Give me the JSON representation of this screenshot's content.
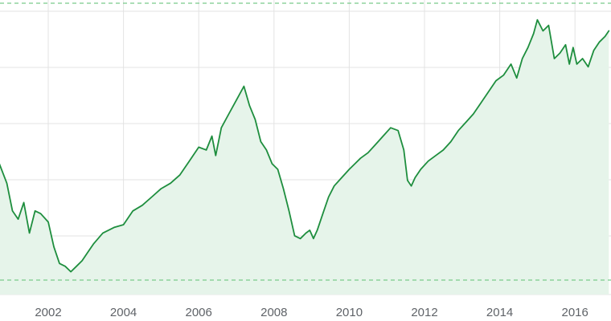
{
  "chart_data": {
    "type": "area",
    "x_ticks": [
      "2002",
      "2004",
      "2006",
      "2008",
      "2010",
      "2012",
      "2014",
      "2016"
    ],
    "reference_lines": {
      "high": 1.0,
      "low": 0.0
    },
    "ylim": [
      0,
      1
    ],
    "grid": true,
    "colors": {
      "line": "#1e8e3e",
      "fill": "#e6f4ea",
      "dashed": "#79c98b",
      "grid": "#e3e3e3",
      "tick_text": "#5f6368"
    },
    "series": [
      {
        "x": [
          2000.7,
          2000.9,
          2001.05,
          2001.2,
          2001.35,
          2001.5,
          2001.65,
          2001.8,
          2002.0,
          2002.15,
          2002.3,
          2002.45,
          2002.6,
          2002.75,
          2002.9,
          2003.05,
          2003.2,
          2003.45,
          2003.75,
          2004.0,
          2004.25,
          2004.5,
          2004.75,
          2005.0,
          2005.25,
          2005.5,
          2005.75,
          2006.0,
          2006.2,
          2006.35,
          2006.45,
          2006.6,
          2006.8,
          2007.0,
          2007.2,
          2007.35,
          2007.5,
          2007.65,
          2007.8,
          2007.95,
          2008.1,
          2008.25,
          2008.4,
          2008.55,
          2008.7,
          2008.85,
          2008.95,
          2009.05,
          2009.15,
          2009.3,
          2009.45,
          2009.6,
          2009.8,
          2010.0,
          2010.15,
          2010.3,
          2010.5,
          2010.7,
          2010.9,
          2011.1,
          2011.3,
          2011.45,
          2011.55,
          2011.65,
          2011.75,
          2011.9,
          2012.1,
          2012.3,
          2012.5,
          2012.7,
          2012.9,
          2013.1,
          2013.3,
          2013.5,
          2013.7,
          2013.9,
          2014.1,
          2014.3,
          2014.45,
          2014.6,
          2014.75,
          2014.9,
          2015.0,
          2015.15,
          2015.3,
          2015.45,
          2015.6,
          2015.75,
          2015.85,
          2015.95,
          2016.05,
          2016.2,
          2016.35,
          2016.5,
          2016.65,
          2016.8,
          2016.9
        ],
        "y": [
          0.42,
          0.35,
          0.25,
          0.22,
          0.28,
          0.17,
          0.25,
          0.24,
          0.21,
          0.12,
          0.06,
          0.05,
          0.03,
          0.05,
          0.07,
          0.1,
          0.13,
          0.17,
          0.19,
          0.2,
          0.25,
          0.27,
          0.3,
          0.33,
          0.35,
          0.38,
          0.43,
          0.48,
          0.47,
          0.52,
          0.45,
          0.55,
          0.6,
          0.65,
          0.7,
          0.63,
          0.58,
          0.5,
          0.47,
          0.42,
          0.4,
          0.33,
          0.25,
          0.16,
          0.15,
          0.17,
          0.18,
          0.15,
          0.18,
          0.24,
          0.3,
          0.34,
          0.37,
          0.4,
          0.42,
          0.44,
          0.46,
          0.49,
          0.52,
          0.55,
          0.54,
          0.47,
          0.36,
          0.34,
          0.37,
          0.4,
          0.43,
          0.45,
          0.47,
          0.5,
          0.54,
          0.57,
          0.6,
          0.64,
          0.68,
          0.72,
          0.74,
          0.78,
          0.73,
          0.8,
          0.84,
          0.89,
          0.94,
          0.9,
          0.92,
          0.8,
          0.82,
          0.85,
          0.78,
          0.84,
          0.78,
          0.8,
          0.77,
          0.83,
          0.86,
          0.88,
          0.9
        ]
      }
    ]
  }
}
